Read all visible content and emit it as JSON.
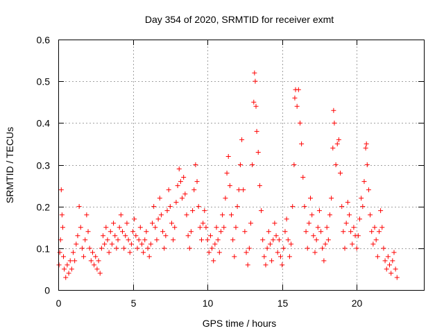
{
  "chart_data": {
    "type": "scatter",
    "title": "Day 354 of 2020, SRMTID for receiver exmt",
    "xlabel": "GPS time / hours",
    "ylabel": "SRMTID / TECUs",
    "xlim": [
      0,
      24.5
    ],
    "ylim": [
      0,
      0.6
    ],
    "x_ticks": [
      0,
      5,
      10,
      15,
      20
    ],
    "x_tick_labels": [
      "0",
      "5",
      "10",
      "15",
      "20"
    ],
    "y_ticks": [
      0,
      0.1,
      0.2,
      0.3,
      0.4,
      0.5,
      0.6
    ],
    "y_tick_labels": [
      "0",
      "0.1",
      "0.2",
      "0.3",
      "0.4",
      "0.5",
      "0.6"
    ],
    "grid": true,
    "marker": "plus",
    "series_color": "#ff0000",
    "series": [
      {
        "name": "SRMTID",
        "points": [
          [
            0.05,
            0.06
          ],
          [
            0.1,
            0.09
          ],
          [
            0.15,
            0.12
          ],
          [
            0.2,
            0.24
          ],
          [
            0.25,
            0.18
          ],
          [
            0.3,
            0.15
          ],
          [
            0.35,
            0.08
          ],
          [
            0.4,
            0.05
          ],
          [
            0.5,
            0.03
          ],
          [
            0.6,
            0.06
          ],
          [
            0.7,
            0.04
          ],
          [
            0.8,
            0.07
          ],
          [
            0.9,
            0.05
          ],
          [
            1.0,
            0.09
          ],
          [
            1.1,
            0.07
          ],
          [
            1.2,
            0.11
          ],
          [
            1.3,
            0.13
          ],
          [
            1.4,
            0.2
          ],
          [
            1.5,
            0.15
          ],
          [
            1.6,
            0.1
          ],
          [
            1.7,
            0.08
          ],
          [
            1.8,
            0.12
          ],
          [
            1.9,
            0.18
          ],
          [
            2.0,
            0.14
          ],
          [
            2.1,
            0.1
          ],
          [
            2.2,
            0.07
          ],
          [
            2.3,
            0.09
          ],
          [
            2.4,
            0.06
          ],
          [
            2.5,
            0.08
          ],
          [
            2.6,
            0.05
          ],
          [
            2.7,
            0.07
          ],
          [
            2.8,
            0.04
          ],
          [
            2.9,
            0.1
          ],
          [
            3.0,
            0.13
          ],
          [
            3.1,
            0.11
          ],
          [
            3.2,
            0.15
          ],
          [
            3.3,
            0.12
          ],
          [
            3.4,
            0.09
          ],
          [
            3.5,
            0.14
          ],
          [
            3.6,
            0.11
          ],
          [
            3.7,
            0.16
          ],
          [
            3.8,
            0.13
          ],
          [
            3.9,
            0.1
          ],
          [
            4.0,
            0.12
          ],
          [
            4.1,
            0.15
          ],
          [
            4.2,
            0.18
          ],
          [
            4.3,
            0.14
          ],
          [
            4.4,
            0.1
          ],
          [
            4.5,
            0.13
          ],
          [
            4.6,
            0.16
          ],
          [
            4.7,
            0.12
          ],
          [
            4.8,
            0.09
          ],
          [
            4.9,
            0.11
          ],
          [
            5.0,
            0.14
          ],
          [
            5.1,
            0.17
          ],
          [
            5.2,
            0.13
          ],
          [
            5.3,
            0.1
          ],
          [
            5.4,
            0.12
          ],
          [
            5.5,
            0.15
          ],
          [
            5.6,
            0.11
          ],
          [
            5.7,
            0.09
          ],
          [
            5.8,
            0.12
          ],
          [
            5.9,
            0.14
          ],
          [
            6.0,
            0.1
          ],
          [
            6.1,
            0.08
          ],
          [
            6.2,
            0.11
          ],
          [
            6.3,
            0.16
          ],
          [
            6.4,
            0.2
          ],
          [
            6.5,
            0.15
          ],
          [
            6.6,
            0.12
          ],
          [
            6.7,
            0.17
          ],
          [
            6.8,
            0.22
          ],
          [
            6.9,
            0.18
          ],
          [
            7.0,
            0.14
          ],
          [
            7.1,
            0.1
          ],
          [
            7.2,
            0.13
          ],
          [
            7.3,
            0.19
          ],
          [
            7.4,
            0.24
          ],
          [
            7.5,
            0.2
          ],
          [
            7.6,
            0.16
          ],
          [
            7.7,
            0.12
          ],
          [
            7.8,
            0.15
          ],
          [
            7.9,
            0.21
          ],
          [
            8.0,
            0.25
          ],
          [
            8.1,
            0.29
          ],
          [
            8.2,
            0.26
          ],
          [
            8.3,
            0.22
          ],
          [
            8.4,
            0.27
          ],
          [
            8.5,
            0.23
          ],
          [
            8.6,
            0.18
          ],
          [
            8.7,
            0.13
          ],
          [
            8.8,
            0.1
          ],
          [
            8.9,
            0.14
          ],
          [
            9.0,
            0.19
          ],
          [
            9.1,
            0.24
          ],
          [
            9.2,
            0.3
          ],
          [
            9.3,
            0.26
          ],
          [
            9.4,
            0.2
          ],
          [
            9.5,
            0.15
          ],
          [
            9.6,
            0.12
          ],
          [
            9.7,
            0.16
          ],
          [
            9.8,
            0.19
          ],
          [
            9.9,
            0.15
          ],
          [
            10.0,
            0.12
          ],
          [
            10.1,
            0.09
          ],
          [
            10.2,
            0.13
          ],
          [
            10.3,
            0.1
          ],
          [
            10.4,
            0.07
          ],
          [
            10.5,
            0.11
          ],
          [
            10.6,
            0.15
          ],
          [
            10.7,
            0.12
          ],
          [
            10.8,
            0.09
          ],
          [
            10.9,
            0.14
          ],
          [
            11.0,
            0.18
          ],
          [
            11.1,
            0.15
          ],
          [
            11.2,
            0.22
          ],
          [
            11.3,
            0.28
          ],
          [
            11.4,
            0.32
          ],
          [
            11.5,
            0.25
          ],
          [
            11.6,
            0.18
          ],
          [
            11.7,
            0.12
          ],
          [
            11.8,
            0.08
          ],
          [
            11.9,
            0.15
          ],
          [
            12.0,
            0.2
          ],
          [
            12.1,
            0.24
          ],
          [
            12.2,
            0.3
          ],
          [
            12.3,
            0.36
          ],
          [
            12.4,
            0.24
          ],
          [
            12.5,
            0.14
          ],
          [
            12.6,
            0.09
          ],
          [
            12.7,
            0.06
          ],
          [
            12.8,
            0.1
          ],
          [
            12.9,
            0.16
          ],
          [
            13.0,
            0.3
          ],
          [
            13.1,
            0.45
          ],
          [
            13.15,
            0.52
          ],
          [
            13.2,
            0.5
          ],
          [
            13.25,
            0.44
          ],
          [
            13.3,
            0.38
          ],
          [
            13.4,
            0.33
          ],
          [
            13.5,
            0.25
          ],
          [
            13.6,
            0.19
          ],
          [
            13.7,
            0.12
          ],
          [
            13.8,
            0.08
          ],
          [
            13.9,
            0.06
          ],
          [
            14.0,
            0.1
          ],
          [
            14.1,
            0.14
          ],
          [
            14.2,
            0.11
          ],
          [
            14.3,
            0.07
          ],
          [
            14.4,
            0.12
          ],
          [
            14.5,
            0.16
          ],
          [
            14.6,
            0.13
          ],
          [
            14.7,
            0.09
          ],
          [
            14.8,
            0.12
          ],
          [
            14.9,
            0.08
          ],
          [
            15.0,
            0.06
          ],
          [
            15.1,
            0.1
          ],
          [
            15.2,
            0.14
          ],
          [
            15.3,
            0.17
          ],
          [
            15.4,
            0.12
          ],
          [
            15.5,
            0.08
          ],
          [
            15.6,
            0.11
          ],
          [
            15.7,
            0.2
          ],
          [
            15.8,
            0.3
          ],
          [
            15.85,
            0.46
          ],
          [
            15.9,
            0.48
          ],
          [
            16.0,
            0.44
          ],
          [
            16.1,
            0.48
          ],
          [
            16.2,
            0.4
          ],
          [
            16.3,
            0.35
          ],
          [
            16.4,
            0.27
          ],
          [
            16.5,
            0.2
          ],
          [
            16.6,
            0.14
          ],
          [
            16.7,
            0.1
          ],
          [
            16.8,
            0.16
          ],
          [
            16.9,
            0.22
          ],
          [
            17.0,
            0.18
          ],
          [
            17.1,
            0.13
          ],
          [
            17.2,
            0.09
          ],
          [
            17.3,
            0.12
          ],
          [
            17.4,
            0.15
          ],
          [
            17.5,
            0.19
          ],
          [
            17.6,
            0.14
          ],
          [
            17.7,
            0.1
          ],
          [
            17.8,
            0.07
          ],
          [
            17.9,
            0.11
          ],
          [
            18.0,
            0.15
          ],
          [
            18.1,
            0.12
          ],
          [
            18.2,
            0.18
          ],
          [
            18.3,
            0.22
          ],
          [
            18.4,
            0.34
          ],
          [
            18.45,
            0.43
          ],
          [
            18.5,
            0.4
          ],
          [
            18.6,
            0.3
          ],
          [
            18.7,
            0.35
          ],
          [
            18.8,
            0.36
          ],
          [
            18.9,
            0.28
          ],
          [
            19.0,
            0.2
          ],
          [
            19.1,
            0.14
          ],
          [
            19.2,
            0.1
          ],
          [
            19.3,
            0.16
          ],
          [
            19.4,
            0.21
          ],
          [
            19.5,
            0.18
          ],
          [
            19.6,
            0.14
          ],
          [
            19.7,
            0.11
          ],
          [
            19.8,
            0.15
          ],
          [
            19.9,
            0.13
          ],
          [
            20.0,
            0.1
          ],
          [
            20.1,
            0.13
          ],
          [
            20.2,
            0.17
          ],
          [
            20.3,
            0.22
          ],
          [
            20.4,
            0.2
          ],
          [
            20.5,
            0.26
          ],
          [
            20.6,
            0.34
          ],
          [
            20.65,
            0.35
          ],
          [
            20.7,
            0.3
          ],
          [
            20.8,
            0.24
          ],
          [
            20.9,
            0.18
          ],
          [
            21.0,
            0.14
          ],
          [
            21.1,
            0.11
          ],
          [
            21.2,
            0.15
          ],
          [
            21.3,
            0.12
          ],
          [
            21.4,
            0.08
          ],
          [
            21.5,
            0.14
          ],
          [
            21.6,
            0.19
          ],
          [
            21.7,
            0.15
          ],
          [
            21.8,
            0.1
          ],
          [
            21.9,
            0.07
          ],
          [
            22.0,
            0.05
          ],
          [
            22.1,
            0.08
          ],
          [
            22.2,
            0.06
          ],
          [
            22.3,
            0.04
          ],
          [
            22.4,
            0.07
          ],
          [
            22.5,
            0.09
          ],
          [
            22.6,
            0.05
          ],
          [
            22.7,
            0.03
          ]
        ]
      }
    ]
  }
}
